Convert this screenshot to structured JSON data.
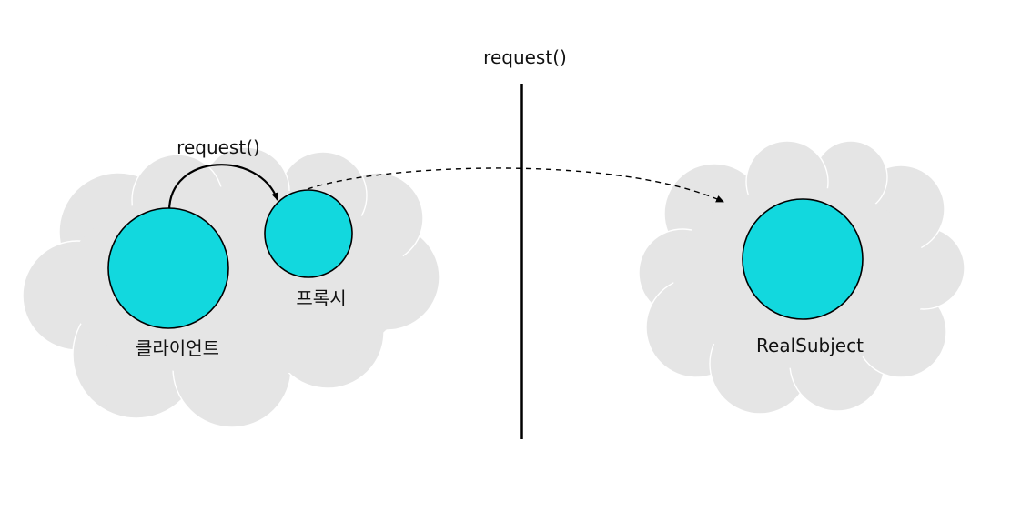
{
  "colors": {
    "cloud": "#e5e5e5",
    "node": "#12d8de",
    "stroke": "#000000",
    "text": "#111111",
    "background": "#ffffff"
  },
  "labels": {
    "boundary_call": "request()",
    "local_call": "request()",
    "client": "클라이언트",
    "proxy": "프록시",
    "real_subject": "RealSubject"
  }
}
